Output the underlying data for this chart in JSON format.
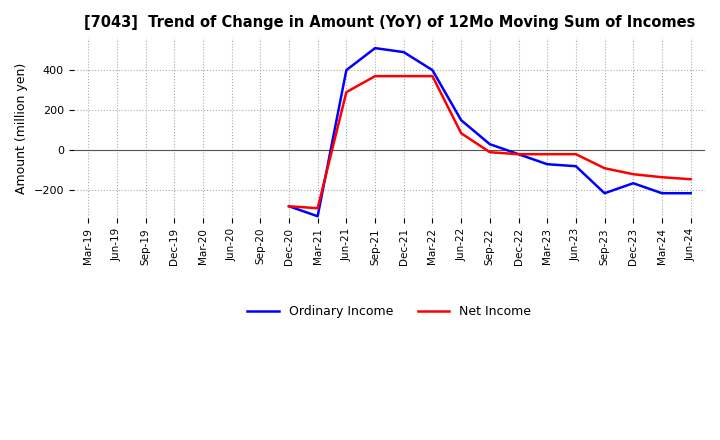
{
  "title": "[7043]  Trend of Change in Amount (YoY) of 12Mo Moving Sum of Incomes",
  "ylabel": "Amount (million yen)",
  "ylim": [
    -340,
    560
  ],
  "yticks": [
    -200,
    0,
    200,
    400
  ],
  "grid_color": "#aaaaaa",
  "background_color": "#ffffff",
  "ordinary_income_color": "#0000ff",
  "net_income_color": "#ff0000",
  "x_labels": [
    "Mar-19",
    "Jun-19",
    "Sep-19",
    "Dec-19",
    "Mar-20",
    "Jun-20",
    "Sep-20",
    "Dec-20",
    "Mar-21",
    "Jun-21",
    "Sep-21",
    "Dec-21",
    "Mar-22",
    "Jun-22",
    "Sep-22",
    "Dec-22",
    "Mar-23",
    "Jun-23",
    "Sep-23",
    "Dec-23",
    "Mar-24",
    "Jun-24"
  ],
  "ordinary_income": [
    null,
    null,
    null,
    null,
    null,
    null,
    null,
    -280,
    -330,
    400,
    510,
    490,
    400,
    150,
    30,
    -20,
    -70,
    -80,
    -215,
    -165,
    -215,
    -215
  ],
  "net_income": [
    null,
    null,
    null,
    null,
    null,
    null,
    null,
    -280,
    -290,
    290,
    370,
    370,
    370,
    85,
    -10,
    -20,
    -20,
    -20,
    -90,
    -120,
    -135,
    -145
  ],
  "line_width": 1.8
}
